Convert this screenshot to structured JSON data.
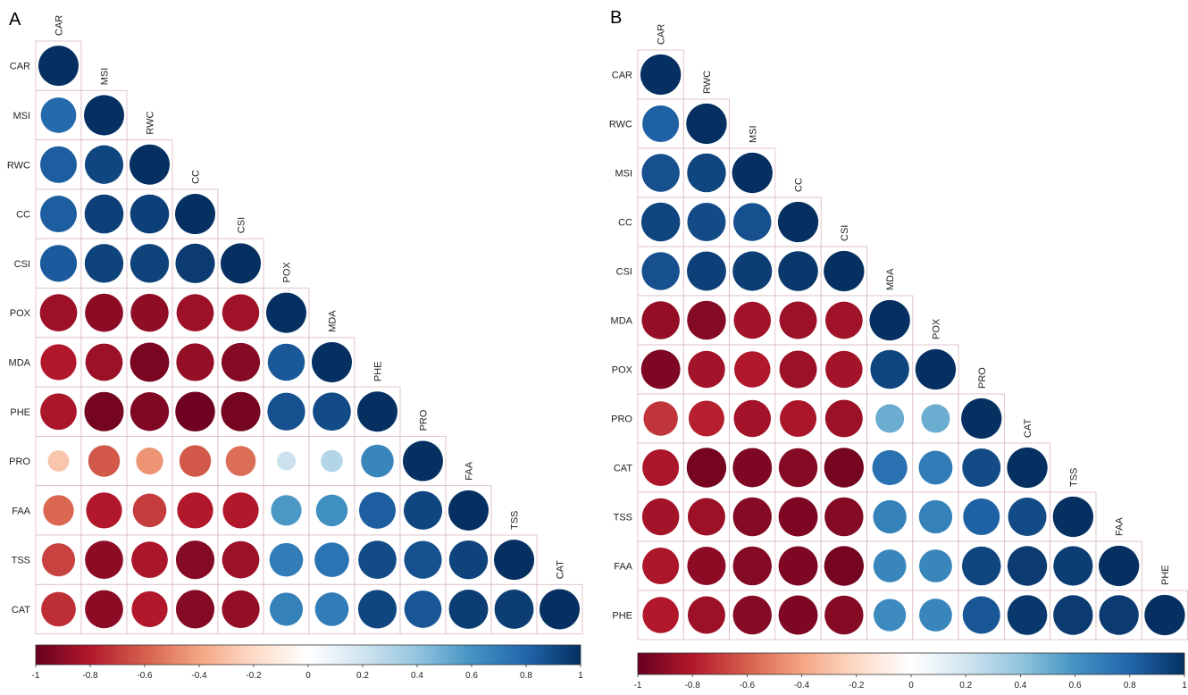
{
  "chart_data": [
    {
      "type": "heatmap",
      "panel": "A",
      "variables": [
        "CAR",
        "MSI",
        "RWC",
        "CC",
        "CSI",
        "POX",
        "MDA",
        "PHE",
        "PRO",
        "FAA",
        "TSS",
        "CAT"
      ],
      "matrix": [
        [
          1.0
        ],
        [
          0.78,
          1.0
        ],
        [
          0.83,
          0.92,
          1.0
        ],
        [
          0.83,
          0.94,
          0.94,
          1.0
        ],
        [
          0.84,
          0.93,
          0.93,
          0.96,
          1.0
        ],
        [
          -0.86,
          -0.9,
          -0.89,
          -0.86,
          -0.85,
          1.0
        ],
        [
          -0.8,
          -0.86,
          -0.95,
          -0.88,
          -0.92,
          0.85,
          1.0
        ],
        [
          -0.82,
          -0.96,
          -0.93,
          -0.98,
          -0.96,
          0.88,
          0.9,
          1.0
        ],
        [
          -0.28,
          -0.62,
          -0.45,
          -0.62,
          -0.56,
          0.22,
          0.3,
          0.66,
          1.0
        ],
        [
          -0.58,
          -0.8,
          -0.7,
          -0.8,
          -0.8,
          0.58,
          0.62,
          0.83,
          0.92,
          1.0
        ],
        [
          -0.68,
          -0.9,
          -0.82,
          -0.92,
          -0.86,
          0.7,
          0.74,
          0.9,
          0.88,
          0.93,
          1.0
        ],
        [
          -0.74,
          -0.9,
          -0.8,
          -0.92,
          -0.88,
          0.68,
          0.7,
          0.92,
          0.86,
          0.95,
          0.95,
          1.0
        ]
      ],
      "colorbar": {
        "ticks": [
          -1,
          -0.8,
          -0.6,
          -0.4,
          -0.2,
          0,
          0.2,
          0.4,
          0.6,
          0.8,
          1
        ],
        "ylim": [
          -1,
          1
        ]
      }
    },
    {
      "type": "heatmap",
      "panel": "B",
      "variables": [
        "CAR",
        "RWC",
        "MSI",
        "CC",
        "CSI",
        "MDA",
        "POX",
        "PRO",
        "CAT",
        "TSS",
        "FAA",
        "PHE"
      ],
      "matrix": [
        [
          1.0
        ],
        [
          0.82,
          1.0
        ],
        [
          0.88,
          0.92,
          1.0
        ],
        [
          0.92,
          0.9,
          0.88,
          1.0
        ],
        [
          0.88,
          0.94,
          0.95,
          0.97,
          1.0
        ],
        [
          -0.88,
          -0.92,
          -0.84,
          -0.86,
          -0.85,
          1.0
        ],
        [
          -0.94,
          -0.84,
          -0.8,
          -0.86,
          -0.84,
          0.92,
          1.0
        ],
        [
          -0.72,
          -0.78,
          -0.84,
          -0.82,
          -0.86,
          0.5,
          0.5,
          1.0
        ],
        [
          -0.82,
          -0.96,
          -0.94,
          -0.92,
          -0.96,
          0.75,
          0.7,
          0.9,
          1.0
        ],
        [
          -0.84,
          -0.86,
          -0.92,
          -0.94,
          -0.92,
          0.68,
          0.68,
          0.82,
          0.9,
          1.0
        ],
        [
          -0.82,
          -0.9,
          -0.92,
          -0.94,
          -0.96,
          0.66,
          0.66,
          0.92,
          0.96,
          0.95,
          1.0
        ],
        [
          -0.8,
          -0.86,
          -0.92,
          -0.94,
          -0.92,
          0.64,
          0.66,
          0.86,
          0.97,
          0.96,
          0.96,
          1.0
        ]
      ],
      "colorbar": {
        "ticks": [
          -1,
          -0.8,
          -0.6,
          -0.4,
          -0.2,
          0,
          0.2,
          0.4,
          0.6,
          0.8,
          1
        ],
        "ylim": [
          -1,
          1
        ]
      }
    }
  ]
}
